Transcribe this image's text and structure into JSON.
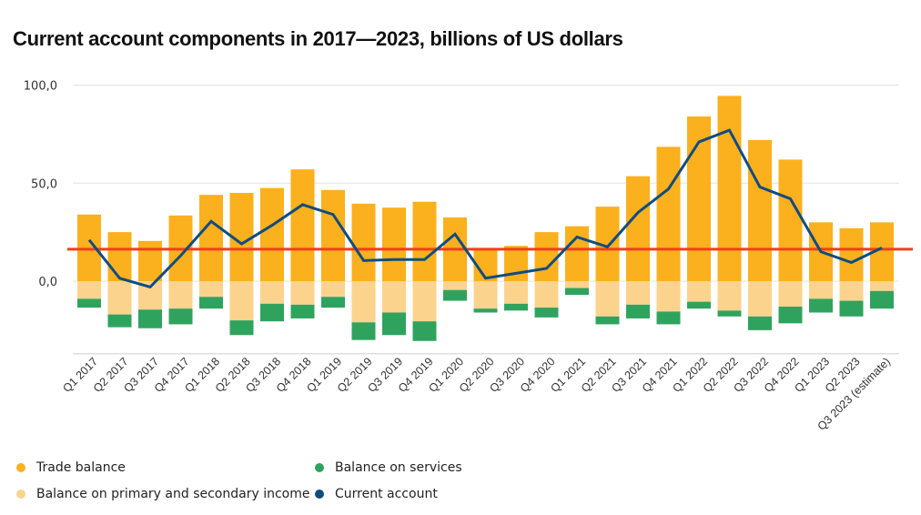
{
  "title": "Current account components in 2017—2023, billions of US dollars",
  "legend": [
    {
      "name": "Trade balance",
      "color": "#FBB01D"
    },
    {
      "name": "Balance on primary and secondary income",
      "color": "#FCD38C"
    },
    {
      "name": "Balance on services",
      "color": "#2FA35E"
    },
    {
      "name": "Current account",
      "color": "#0F4C81"
    }
  ],
  "chart_data": {
    "type": "bar",
    "title": "Current account components in 2017—2023, billions of US dollars",
    "xlabel": "",
    "ylabel": "",
    "ylim": [
      -37,
      100
    ],
    "yticks": [
      0,
      50,
      100
    ],
    "ytick_labels": [
      "0,0",
      "50,0",
      "100,0"
    ],
    "grid": true,
    "legend_position": "bottom-left",
    "categories": [
      "Q1 2017",
      "Q2 2017",
      "Q3 2017",
      "Q4 2017",
      "Q1 2018",
      "Q2 2018",
      "Q3 2018",
      "Q4 2018",
      "Q1 2019",
      "Q2 2019",
      "Q3 2019",
      "Q4 2019",
      "Q1 2020",
      "Q2 2020",
      "Q3 2020",
      "Q4 2020",
      "Q1 2021",
      "Q2 2021",
      "Q3 2021",
      "Q4 2021",
      "Q1 2022",
      "Q2 2022",
      "Q3 2022",
      "Q4 2022",
      "Q1 2023",
      "Q2 2023",
      "Q3 2023 (estimate)"
    ],
    "series": [
      {
        "name": "Trade balance",
        "kind": "stacked-bar",
        "color": "#FBB01D",
        "values": [
          34,
          25,
          20.5,
          33.5,
          44,
          45,
          47.5,
          57,
          46.5,
          39.5,
          37.5,
          40.5,
          32.5,
          16,
          18,
          25,
          28,
          38,
          53.5,
          68.5,
          84,
          94.5,
          72,
          62,
          30,
          27,
          30
        ]
      },
      {
        "name": "Balance on primary and secondary income",
        "kind": "stacked-bar",
        "color": "#FCD38C",
        "values": [
          -9,
          -17,
          -14.5,
          -14,
          -8,
          -20,
          -11.5,
          -12,
          -8,
          -21,
          -16,
          -20.5,
          -4.5,
          -14,
          -11.5,
          -13.5,
          -3.5,
          -18,
          -12,
          -15.5,
          -10.5,
          -15,
          -18,
          -13,
          -9,
          -10,
          -5
        ]
      },
      {
        "name": "Balance on services",
        "kind": "stacked-bar",
        "color": "#2FA35E",
        "values": [
          -4.5,
          -6.5,
          -9.5,
          -8,
          -6,
          -7.5,
          -9,
          -7,
          -5.5,
          -9,
          -11.5,
          -10,
          -5.5,
          -2,
          -3.5,
          -5,
          -3.5,
          -4,
          -7,
          -6.5,
          -3.5,
          -3,
          -7,
          -8.5,
          -7,
          -8,
          -9
        ]
      },
      {
        "name": "Current account",
        "kind": "line",
        "color": "#0F4C81",
        "values": [
          21,
          1.5,
          -3,
          13,
          30.5,
          19,
          28.5,
          39,
          34,
          10.5,
          11,
          11,
          24,
          1.5,
          4,
          6.5,
          22.5,
          17.5,
          35,
          47,
          71,
          77,
          48,
          42,
          15,
          9.5,
          17
        ]
      }
    ],
    "reference_line": {
      "value": 16.3,
      "color": "#F0401A"
    }
  }
}
